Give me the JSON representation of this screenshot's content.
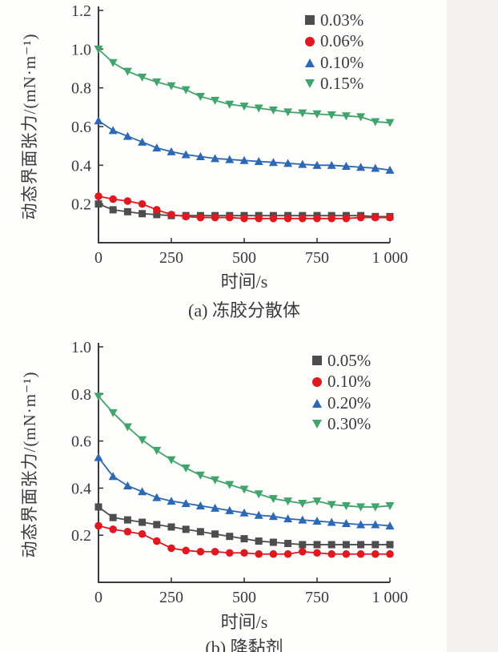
{
  "page": {
    "background": "#fdfdfb",
    "text_color": "#3a3a3a"
  },
  "chart_data": [
    {
      "type": "line",
      "caption": "(a) 冻胶分散体",
      "xlabel": "时间/s",
      "ylabel": "动态界面张力/(mN·m⁻¹)",
      "xlim": [
        0,
        1000
      ],
      "ylim": [
        0,
        1.2
      ],
      "grid": false,
      "legend_position": "top-right",
      "xticks": {
        "values": [
          0,
          250,
          500,
          750,
          1000
        ],
        "labels": [
          "0",
          "250",
          "500",
          "750",
          "1 000"
        ]
      },
      "yticks": {
        "values": [
          0.2,
          0.4,
          0.6,
          0.8,
          1.0,
          1.2
        ],
        "labels": [
          "0.2",
          "0.4",
          "0.6",
          "0.8",
          "1.0",
          "1.2"
        ]
      },
      "x": [
        0,
        50,
        100,
        150,
        200,
        250,
        300,
        350,
        400,
        450,
        500,
        550,
        600,
        650,
        700,
        750,
        800,
        850,
        900,
        950,
        1000
      ],
      "series": [
        {
          "name": "0.03%",
          "marker": "square",
          "color": "#4d4d4d",
          "values": [
            0.2,
            0.17,
            0.16,
            0.15,
            0.145,
            0.14,
            0.14,
            0.14,
            0.14,
            0.14,
            0.14,
            0.14,
            0.14,
            0.14,
            0.14,
            0.14,
            0.14,
            0.14,
            0.14,
            0.135,
            0.135
          ]
        },
        {
          "name": "0.06%",
          "marker": "circle",
          "color": "#e01920",
          "values": [
            0.24,
            0.225,
            0.215,
            0.2,
            0.17,
            0.145,
            0.135,
            0.13,
            0.13,
            0.13,
            0.125,
            0.125,
            0.125,
            0.125,
            0.125,
            0.125,
            0.125,
            0.125,
            0.13,
            0.13,
            0.13
          ]
        },
        {
          "name": "0.10%",
          "marker": "triangle-up",
          "color": "#2d68b4",
          "values": [
            0.63,
            0.58,
            0.55,
            0.52,
            0.49,
            0.47,
            0.455,
            0.445,
            0.435,
            0.43,
            0.425,
            0.42,
            0.415,
            0.41,
            0.405,
            0.4,
            0.4,
            0.395,
            0.39,
            0.385,
            0.375
          ]
        },
        {
          "name": "0.15%",
          "marker": "triangle-down",
          "color": "#41a46c",
          "values": [
            1.0,
            0.93,
            0.885,
            0.855,
            0.83,
            0.81,
            0.79,
            0.755,
            0.735,
            0.715,
            0.705,
            0.695,
            0.685,
            0.675,
            0.67,
            0.665,
            0.66,
            0.655,
            0.65,
            0.625,
            0.62
          ]
        }
      ]
    },
    {
      "type": "line",
      "caption": "(b) 降黏剂",
      "xlabel": "时间/s",
      "ylabel": "动态界面张力/(mN·m⁻¹)",
      "xlim": [
        0,
        1000
      ],
      "ylim": [
        0,
        1.0
      ],
      "grid": false,
      "legend_position": "top-right",
      "xticks": {
        "values": [
          0,
          250,
          500,
          750,
          1000
        ],
        "labels": [
          "0",
          "250",
          "500",
          "750",
          "1 000"
        ]
      },
      "yticks": {
        "values": [
          0.2,
          0.4,
          0.6,
          0.8,
          1.0
        ],
        "labels": [
          "0.2",
          "0.4",
          "0.6",
          "0.8",
          "1.0"
        ]
      },
      "x": [
        0,
        50,
        100,
        150,
        200,
        250,
        300,
        350,
        400,
        450,
        500,
        550,
        600,
        650,
        700,
        750,
        800,
        850,
        900,
        950,
        1000
      ],
      "series": [
        {
          "name": "0.05%",
          "marker": "square",
          "color": "#4d4d4d",
          "values": [
            0.32,
            0.275,
            0.265,
            0.255,
            0.245,
            0.235,
            0.225,
            0.215,
            0.205,
            0.195,
            0.185,
            0.175,
            0.17,
            0.165,
            0.16,
            0.16,
            0.16,
            0.16,
            0.16,
            0.16,
            0.16
          ]
        },
        {
          "name": "0.10%",
          "marker": "circle",
          "color": "#e01920",
          "values": [
            0.24,
            0.225,
            0.215,
            0.205,
            0.175,
            0.145,
            0.135,
            0.13,
            0.13,
            0.125,
            0.125,
            0.12,
            0.12,
            0.12,
            0.13,
            0.125,
            0.12,
            0.12,
            0.12,
            0.12,
            0.12
          ]
        },
        {
          "name": "0.20%",
          "marker": "triangle-up",
          "color": "#2d68b4",
          "values": [
            0.53,
            0.45,
            0.41,
            0.385,
            0.36,
            0.345,
            0.335,
            0.325,
            0.315,
            0.305,
            0.295,
            0.285,
            0.28,
            0.27,
            0.265,
            0.26,
            0.255,
            0.25,
            0.245,
            0.245,
            0.24
          ]
        },
        {
          "name": "0.30%",
          "marker": "triangle-down",
          "color": "#41a46c",
          "values": [
            0.79,
            0.72,
            0.66,
            0.605,
            0.56,
            0.52,
            0.485,
            0.455,
            0.435,
            0.415,
            0.395,
            0.375,
            0.355,
            0.345,
            0.335,
            0.345,
            0.33,
            0.325,
            0.32,
            0.32,
            0.325
          ]
        }
      ]
    }
  ]
}
